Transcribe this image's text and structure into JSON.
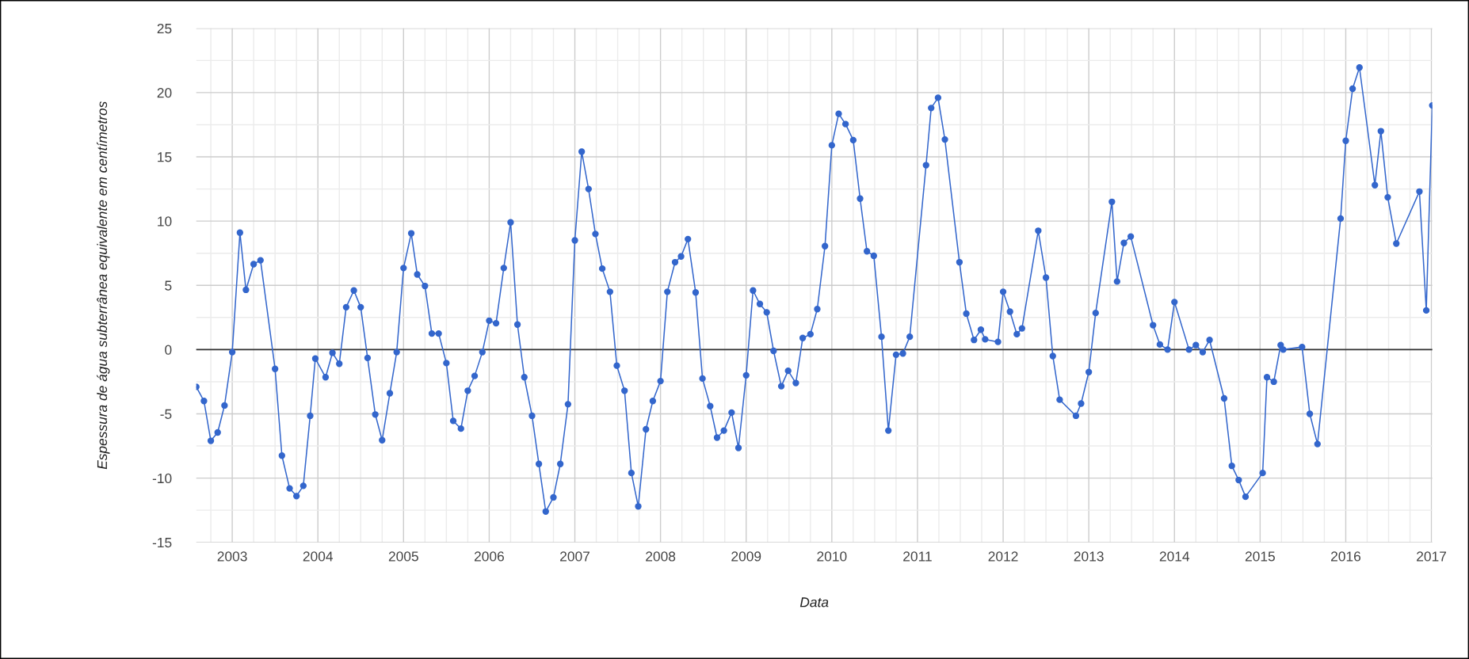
{
  "chart_data": {
    "type": "line",
    "xlabel": "Data",
    "ylabel": "Espessura de água subterrânea equivalente em centímetros",
    "x": [
      2002.58,
      2002.67,
      2002.75,
      2002.83,
      2002.91,
      2003.0,
      2003.09,
      2003.16,
      2003.25,
      2003.33,
      2003.5,
      2003.58,
      2003.67,
      2003.75,
      2003.83,
      2003.91,
      2003.97,
      2004.09,
      2004.17,
      2004.25,
      2004.33,
      2004.42,
      2004.5,
      2004.58,
      2004.67,
      2004.75,
      2004.84,
      2004.92,
      2005.0,
      2005.09,
      2005.16,
      2005.25,
      2005.33,
      2005.41,
      2005.5,
      2005.58,
      2005.67,
      2005.75,
      2005.83,
      2005.92,
      2006.0,
      2006.08,
      2006.17,
      2006.25,
      2006.33,
      2006.41,
      2006.5,
      2006.58,
      2006.66,
      2006.75,
      2006.83,
      2006.92,
      2007.0,
      2007.08,
      2007.16,
      2007.24,
      2007.32,
      2007.41,
      2007.49,
      2007.58,
      2007.66,
      2007.74,
      2007.83,
      2007.91,
      2008.0,
      2008.08,
      2008.17,
      2008.24,
      2008.32,
      2008.41,
      2008.49,
      2008.58,
      2008.66,
      2008.74,
      2008.83,
      2008.91,
      2009.0,
      2009.08,
      2009.16,
      2009.24,
      2009.32,
      2009.41,
      2009.49,
      2009.58,
      2009.66,
      2009.75,
      2009.83,
      2009.92,
      2010.0,
      2010.08,
      2010.16,
      2010.25,
      2010.33,
      2010.41,
      2010.49,
      2010.58,
      2010.66,
      2010.75,
      2010.83,
      2010.91,
      2011.1,
      2011.16,
      2011.24,
      2011.32,
      2011.49,
      2011.57,
      2011.66,
      2011.74,
      2011.79,
      2011.94,
      2012.0,
      2012.08,
      2012.16,
      2012.22,
      2012.41,
      2012.5,
      2012.58,
      2012.66,
      2012.85,
      2012.91,
      2013.0,
      2013.08,
      2013.27,
      2013.33,
      2013.41,
      2013.49,
      2013.75,
      2013.83,
      2013.92,
      2014.0,
      2014.17,
      2014.25,
      2014.33,
      2014.41,
      2014.58,
      2014.67,
      2014.75,
      2014.83,
      2015.03,
      2015.08,
      2015.16,
      2015.24,
      2015.27,
      2015.49,
      2015.58,
      2015.67,
      2015.94,
      2016.0,
      2016.08,
      2016.16,
      2016.34,
      2016.41,
      2016.49,
      2016.59,
      2016.86,
      2016.94,
      2017.01
    ],
    "series": [
      {
        "color": "#3366cc",
        "values": [
          -2.9,
          -4.0,
          -7.1,
          -6.45,
          -4.35,
          -0.2,
          9.1,
          4.65,
          6.65,
          6.95,
          -1.5,
          -8.25,
          -10.8,
          -11.4,
          -10.6,
          -5.15,
          -0.7,
          -2.15,
          -0.25,
          -1.1,
          3.3,
          4.6,
          3.3,
          -0.65,
          -5.05,
          -7.05,
          -3.4,
          -0.2,
          6.35,
          9.05,
          5.85,
          4.95,
          1.25,
          1.25,
          -1.05,
          -5.55,
          -6.15,
          -3.2,
          -2.05,
          -0.2,
          2.25,
          2.05,
          6.35,
          9.9,
          1.95,
          -2.15,
          -5.15,
          -8.9,
          -12.6,
          -11.5,
          -8.9,
          -4.25,
          8.5,
          15.4,
          12.5,
          9.0,
          6.3,
          4.5,
          -1.25,
          -3.2,
          -9.6,
          -12.2,
          -6.2,
          -4.0,
          -2.45,
          4.5,
          6.8,
          7.25,
          8.6,
          4.45,
          -2.25,
          -4.4,
          -6.85,
          -6.3,
          -4.9,
          -7.65,
          -2.0,
          4.6,
          3.55,
          2.9,
          -0.1,
          -2.85,
          -1.65,
          -2.6,
          0.9,
          1.2,
          3.15,
          8.05,
          15.9,
          18.35,
          17.55,
          16.3,
          11.75,
          7.65,
          7.3,
          1.0,
          -6.3,
          -0.4,
          -0.3,
          1.0,
          14.35,
          18.8,
          19.6,
          16.35,
          6.8,
          2.8,
          0.75,
          1.55,
          0.8,
          0.6,
          4.5,
          2.95,
          1.2,
          1.65,
          9.25,
          5.6,
          -0.5,
          -3.9,
          -5.15,
          -4.2,
          -1.75,
          2.85,
          11.5,
          5.3,
          8.3,
          8.8,
          1.9,
          0.4,
          0.0,
          3.7,
          0.0,
          0.35,
          -0.2,
          0.75,
          -3.8,
          -9.05,
          -10.15,
          -11.45,
          -9.6,
          -2.15,
          -2.5,
          0.35,
          0.0,
          0.2,
          -5.0,
          -7.35,
          10.2,
          16.25,
          20.3,
          21.95,
          12.8,
          17.0,
          11.85,
          8.25,
          12.3,
          3.05,
          19.0
        ]
      }
    ],
    "xlim": [
      2002.58,
      2017.01
    ],
    "xticks": [
      2003,
      2004,
      2005,
      2006,
      2007,
      2008,
      2009,
      2010,
      2011,
      2012,
      2013,
      2014,
      2015,
      2016,
      2017
    ],
    "ylim": [
      -15,
      25
    ],
    "yticks": [
      -15,
      -10,
      -5,
      0,
      5,
      10,
      15,
      20,
      25
    ],
    "ref_lines": [
      {
        "axis": "y",
        "value": 0,
        "color": "#333333"
      }
    ],
    "grid": true,
    "marker": "circle",
    "line_style": "solid"
  }
}
